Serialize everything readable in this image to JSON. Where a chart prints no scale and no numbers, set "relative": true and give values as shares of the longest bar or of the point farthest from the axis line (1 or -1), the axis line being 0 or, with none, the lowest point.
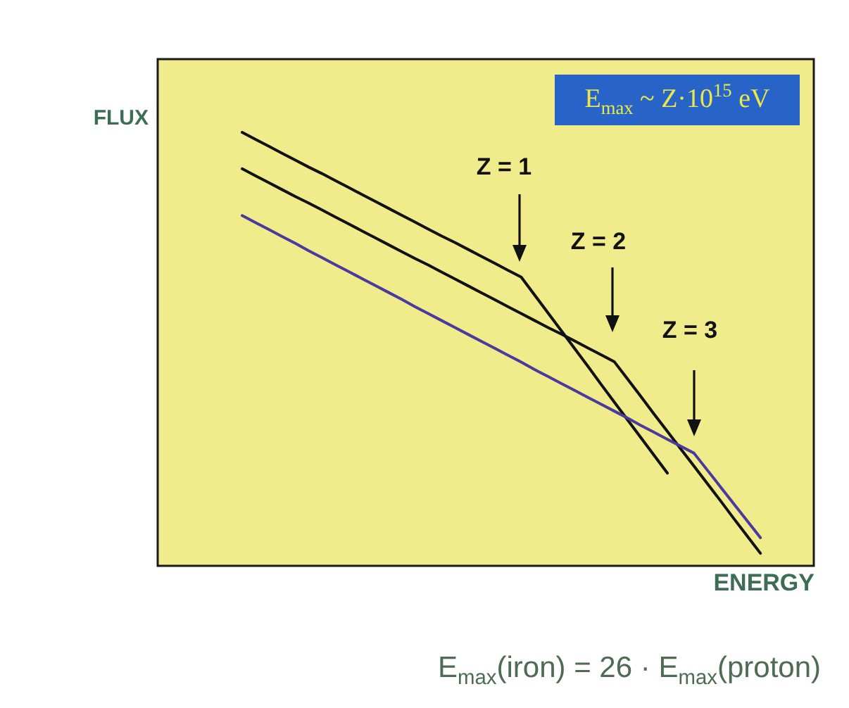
{
  "chart_data": {
    "type": "line",
    "relative": true,
    "xlabel": "ENERGY",
    "ylabel": "FLUX",
    "categories": [
      null,
      null,
      null,
      null,
      null,
      null,
      null,
      null,
      null,
      null,
      null,
      null,
      null,
      null,
      null,
      null,
      null,
      null,
      null,
      null,
      null,
      null,
      null,
      null,
      null,
      null,
      null,
      null,
      null,
      null,
      null,
      null,
      null,
      null,
      null,
      null,
      null,
      null,
      null,
      null
    ],
    "series": [
      {
        "color": "#111111",
        "values": [
          1.0,
          0.984,
          0.968,
          0.952,
          0.936,
          0.92,
          0.905,
          0.889,
          0.873,
          0.857,
          0.841,
          0.825,
          0.809,
          0.793,
          0.777,
          0.761,
          0.746,
          0.73,
          0.714,
          0.698,
          0.682,
          0.666,
          0.625,
          0.584,
          0.543,
          0.502,
          0.461,
          0.419,
          0.378,
          0.337,
          0.296,
          0.255,
          0.214,
          null,
          null,
          null,
          null,
          null,
          null,
          null
        ]
      },
      {
        "color": "#111111",
        "values": [
          0.916,
          0.9,
          0.884,
          0.868,
          0.852,
          0.837,
          0.821,
          0.805,
          0.789,
          0.773,
          0.757,
          0.741,
          0.725,
          0.709,
          0.694,
          0.678,
          0.662,
          0.646,
          0.63,
          0.614,
          0.598,
          0.582,
          0.566,
          0.55,
          0.535,
          0.519,
          0.503,
          0.487,
          0.471,
          0.431,
          0.391,
          0.35,
          0.31,
          0.27,
          0.23,
          0.19,
          0.15,
          0.109,
          0.069,
          0.029
        ]
      },
      {
        "color": "#4b3a9e",
        "values": [
          0.808,
          0.792,
          0.776,
          0.76,
          0.744,
          0.727,
          0.711,
          0.695,
          0.679,
          0.663,
          0.647,
          0.631,
          0.615,
          0.598,
          0.582,
          0.566,
          0.55,
          0.534,
          0.518,
          0.502,
          0.486,
          0.47,
          0.453,
          0.437,
          0.421,
          0.405,
          0.389,
          0.373,
          0.357,
          0.341,
          0.324,
          0.308,
          0.292,
          0.276,
          0.26,
          0.221,
          0.182,
          0.143,
          0.104,
          0.065
        ]
      }
    ],
    "annotations": [
      "E$_{max}$ ~ Z·10$^{15}$ eV",
      "Z = 1",
      "Z = 2",
      "Z = 3",
      "E$_{max}$(iron) = 26 · E$_{max}$(proton)"
    ]
  }
}
